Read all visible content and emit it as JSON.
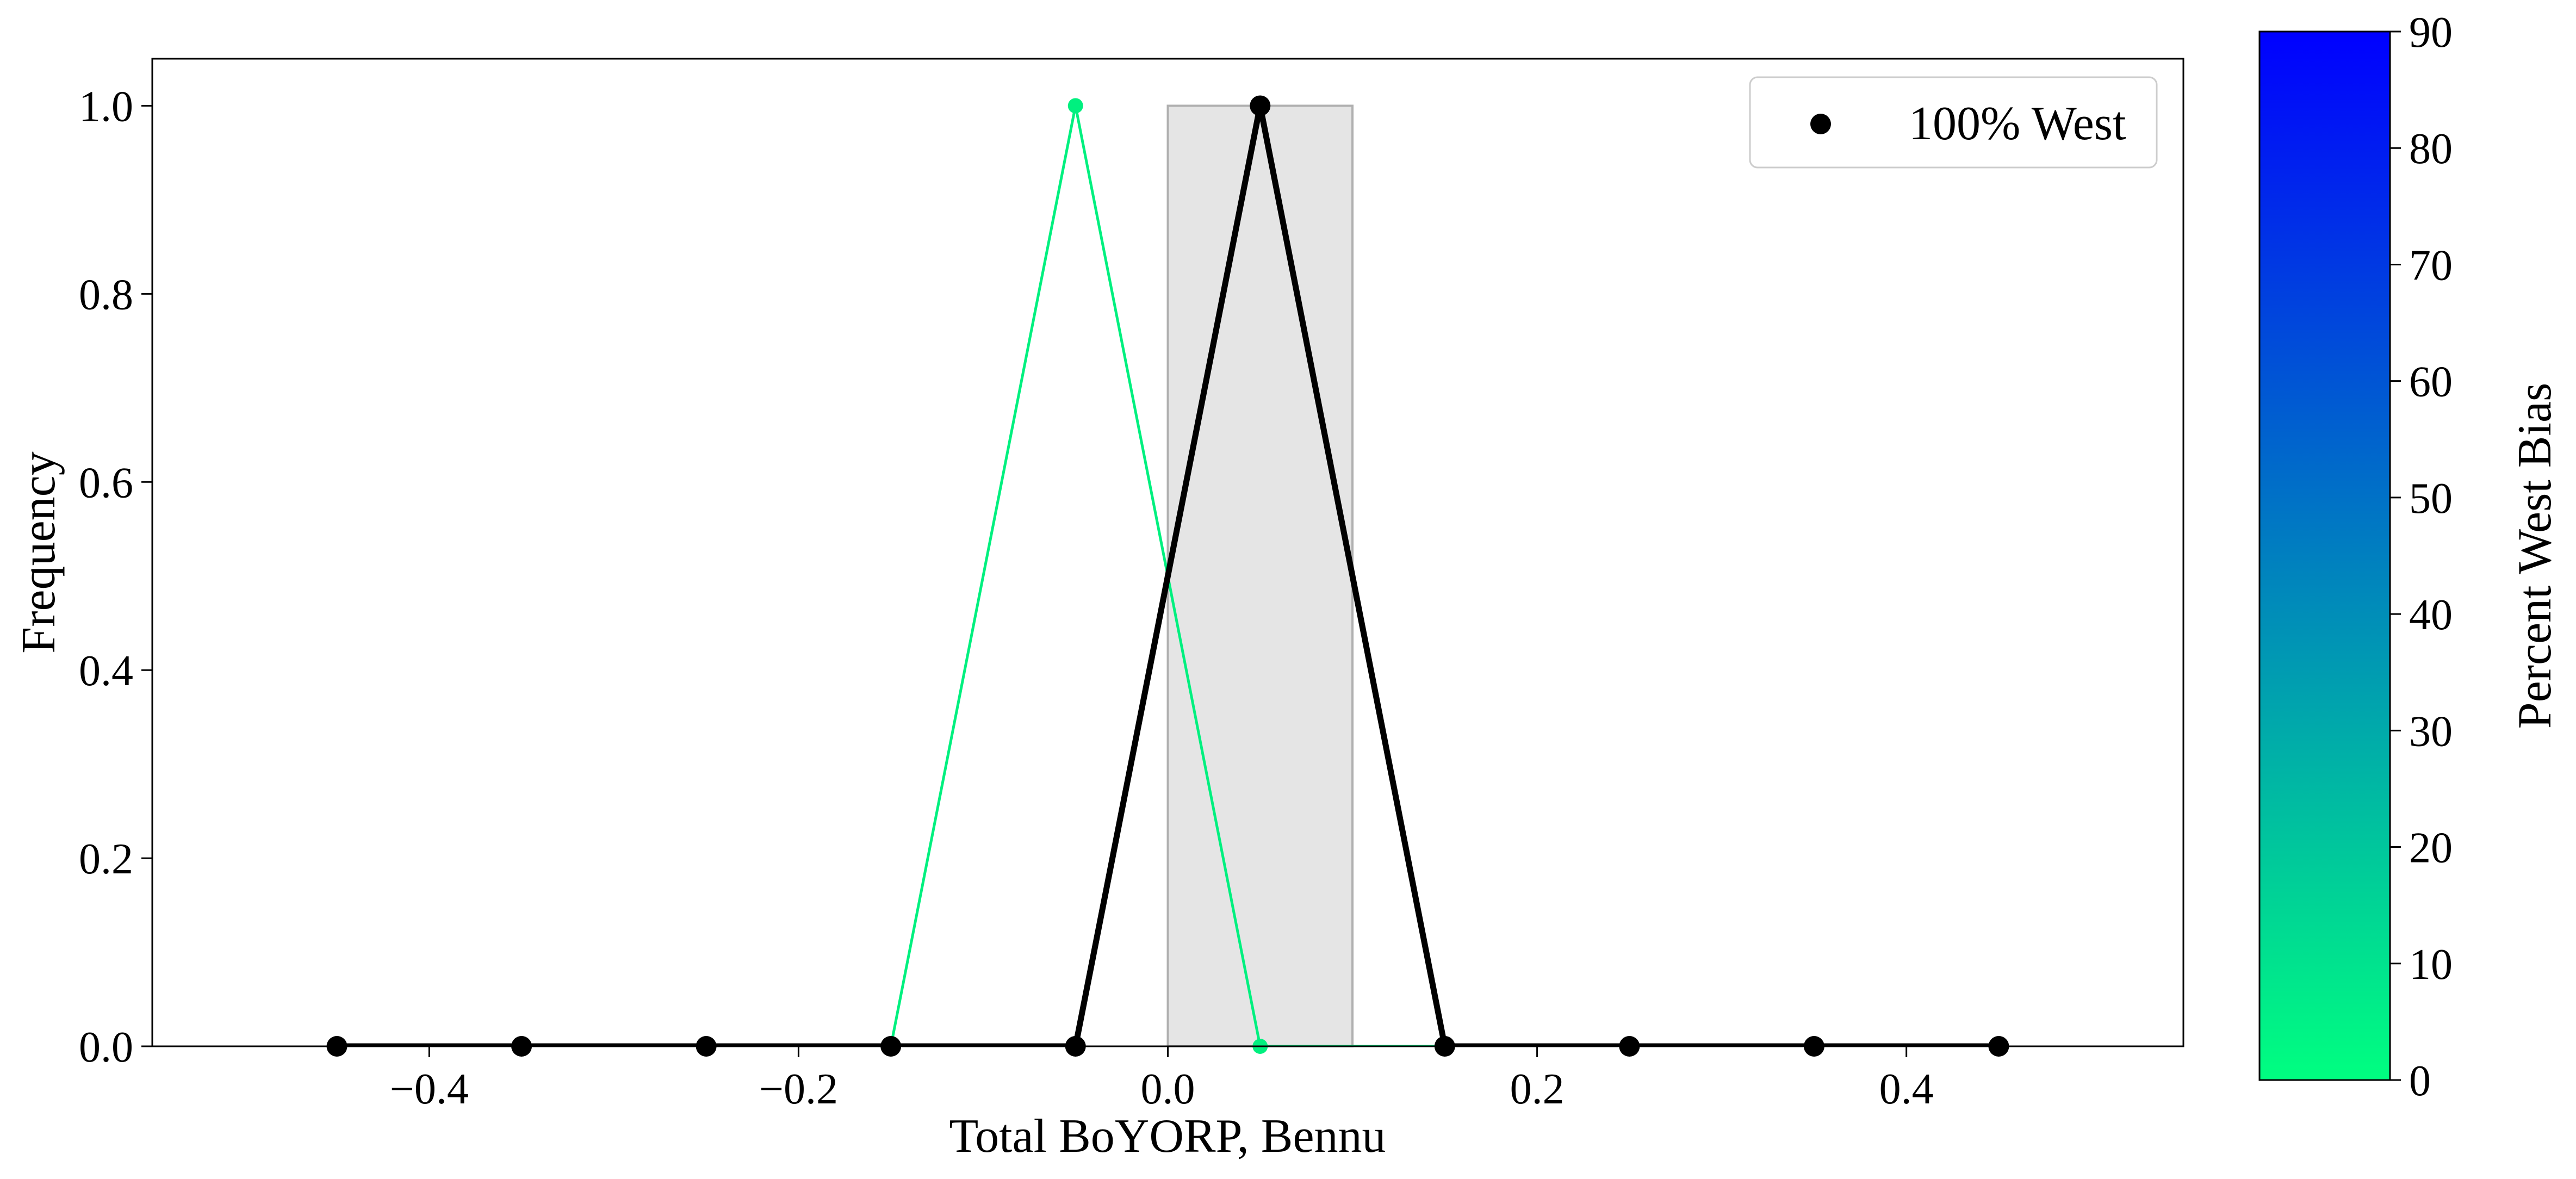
{
  "chart_data": {
    "type": "line",
    "xlabel": "Total BoYORP, Bennu",
    "ylabel": "Frequency",
    "xlim": [
      -0.55,
      0.55
    ],
    "ylim": [
      0,
      1.05
    ],
    "xticks": [
      -0.4,
      -0.2,
      0.0,
      0.2,
      0.4
    ],
    "xtick_labels": [
      "−0.4",
      "−0.2",
      "0.0",
      "0.2",
      "0.4"
    ],
    "yticks": [
      0.0,
      0.2,
      0.4,
      0.6,
      0.8,
      1.0
    ],
    "ytick_labels": [
      "0.0",
      "0.2",
      "0.4",
      "0.6",
      "0.8",
      "1.0"
    ],
    "grid": false,
    "legend_location": "top-right",
    "shaded_region": {
      "x": [
        0.0,
        0.1
      ],
      "y": [
        0,
        1.0
      ],
      "color": "#e5e5e5"
    },
    "series": [
      {
        "name": "",
        "percent_west_bias": 0,
        "color": "#00f07f",
        "marker_points": "visible only",
        "x": [
          -0.45,
          -0.35,
          -0.25,
          -0.15,
          -0.05,
          0.05,
          0.15,
          0.25,
          0.35,
          0.45
        ],
        "y": [
          0,
          0,
          0,
          0,
          1,
          0,
          0,
          0,
          0,
          0
        ],
        "style": "thin"
      },
      {
        "name": "100% West",
        "color": "#000000",
        "x": [
          -0.45,
          -0.35,
          -0.25,
          -0.15,
          -0.05,
          0.05,
          0.15,
          0.25,
          0.35,
          0.45
        ],
        "y": [
          0,
          0,
          0,
          0,
          0,
          1,
          0,
          0,
          0,
          0
        ],
        "style": "thick"
      }
    ],
    "legend": [
      {
        "label": "100% West",
        "marker": "circle",
        "color": "#000000"
      }
    ],
    "colorbar": {
      "label": "Percent West Bias",
      "range": [
        0,
        90
      ],
      "ticks": [
        0,
        10,
        20,
        30,
        40,
        50,
        60,
        70,
        80,
        90
      ],
      "tick_labels": [
        "0",
        "10",
        "20",
        "30",
        "40",
        "50",
        "60",
        "70",
        "80",
        "90"
      ],
      "color_low": "#00ff80",
      "color_high": "#0000ff"
    }
  }
}
